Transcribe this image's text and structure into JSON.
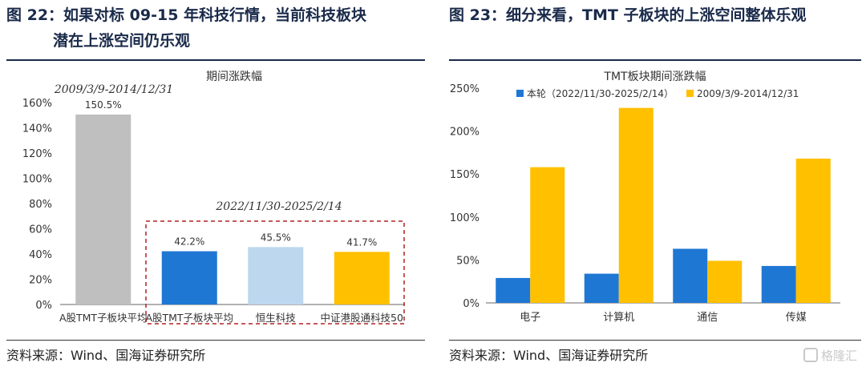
{
  "left_figure": {
    "title_line1": "图 22：如果对标 09-15 年科技行情，当前科技板块",
    "title_line2": "潜在上涨空间仍乐观",
    "source": "资料来源：Wind、国海证券研究所"
  },
  "right_figure": {
    "title": "图 23：细分来看，TMT 子板块的上涨空间整体乐观",
    "source": "资料来源：Wind、国海证券研究所"
  },
  "watermark": "格隆汇",
  "chart_data": [
    {
      "type": "bar",
      "title": "期间涨跌幅",
      "categories": [
        "A股TMT子板块平均",
        "A股TMT子板块平均",
        "恒生科技",
        "中证港股通科技50"
      ],
      "values": [
        150.5,
        42.2,
        45.5,
        41.7
      ],
      "value_labels": [
        "150.5%",
        "42.2%",
        "45.5%",
        "41.7%"
      ],
      "colors": [
        "#bfbfbf",
        "#1f77d4",
        "#bdd7ee",
        "#ffc000"
      ],
      "ylim": [
        0,
        160
      ],
      "yticks": [
        "0%",
        "20%",
        "40%",
        "60%",
        "80%",
        "100%",
        "120%",
        "140%",
        "160%"
      ],
      "annotations": [
        "2009/3/9-2014/12/31",
        "2022/11/30-2025/2/14"
      ],
      "grid": false
    },
    {
      "type": "bar",
      "title": "TMT板块期间涨跌幅",
      "categories": [
        "电子",
        "计算机",
        "通信",
        "传媒"
      ],
      "series": [
        {
          "name": "本轮（2022/11/30-2025/2/14）",
          "color": "#1f77d4",
          "values": [
            29,
            34,
            63,
            43
          ]
        },
        {
          "name": "2009/3/9-2014/12/31",
          "color": "#ffc000",
          "values": [
            158,
            227,
            49,
            168
          ]
        }
      ],
      "ylim": [
        0,
        250
      ],
      "yticks": [
        "0%",
        "50%",
        "100%",
        "150%",
        "200%",
        "250%"
      ],
      "legend": "top",
      "grid": false
    }
  ]
}
